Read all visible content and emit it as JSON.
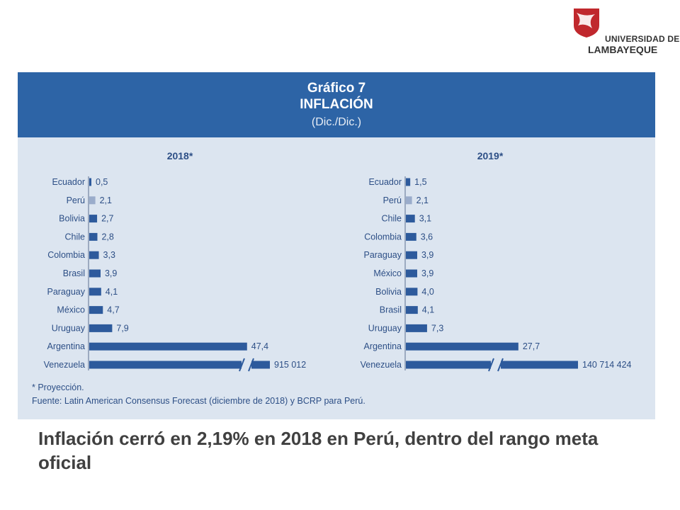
{
  "logo": {
    "line1": "UNIVERSIDAD DE",
    "line2": "LAMBAYEQUE",
    "colors": {
      "red": "#c0282d",
      "dark": "#3a3a3a"
    }
  },
  "figure": {
    "title": "Gráfico 7",
    "subtitle": "INFLACIÓN",
    "unit": "(Dic./Dic.)",
    "note1": "* Proyección.",
    "note2": "Fuente: Latin American Consensus Forecast (diciembre de 2018) y BCRP para Perú."
  },
  "colors": {
    "header": "#2d64a6",
    "panel": "#dce5f0",
    "bar": "#2d5a9c",
    "bar_peru": "#9aaccb",
    "text": "#2d4f86"
  },
  "caption": "Inflación cerró en 2,19% en 2018 en Perú, dentro del rango meta oficial",
  "chart_data": [
    {
      "type": "bar",
      "orientation": "horizontal",
      "title": "2018*",
      "categories": [
        "Ecuador",
        "Perú",
        "Bolivia",
        "Chile",
        "Colombia",
        "Brasil",
        "Paraguay",
        "México",
        "Uruguay",
        "Argentina",
        "Venezuela"
      ],
      "values": [
        0.5,
        2.1,
        2.7,
        2.8,
        3.3,
        3.9,
        4.1,
        4.7,
        7.9,
        47.4,
        915012
      ],
      "labels": [
        "0,5",
        "2,1",
        "2,7",
        "2,8",
        "3,3",
        "3,9",
        "4,1",
        "4,7",
        "7,9",
        "47,4",
        "915 012"
      ],
      "highlight": "Perú",
      "axis_break": "Venezuela"
    },
    {
      "type": "bar",
      "orientation": "horizontal",
      "title": "2019*",
      "categories": [
        "Ecuador",
        "Perú",
        "Chile",
        "Colombia",
        "Paraguay",
        "México",
        "Bolivia",
        "Brasil",
        "Uruguay",
        "Argentina",
        "Venezuela"
      ],
      "values": [
        1.5,
        2.1,
        3.1,
        3.6,
        3.9,
        3.9,
        4.0,
        4.1,
        7.3,
        27.7,
        140714424
      ],
      "labels": [
        "1,5",
        "2,1",
        "3,1",
        "3,6",
        "3,9",
        "3,9",
        "4,0",
        "4,1",
        "7,3",
        "27,7",
        "140 714 424"
      ],
      "highlight": "Perú",
      "axis_break": "Venezuela"
    }
  ]
}
